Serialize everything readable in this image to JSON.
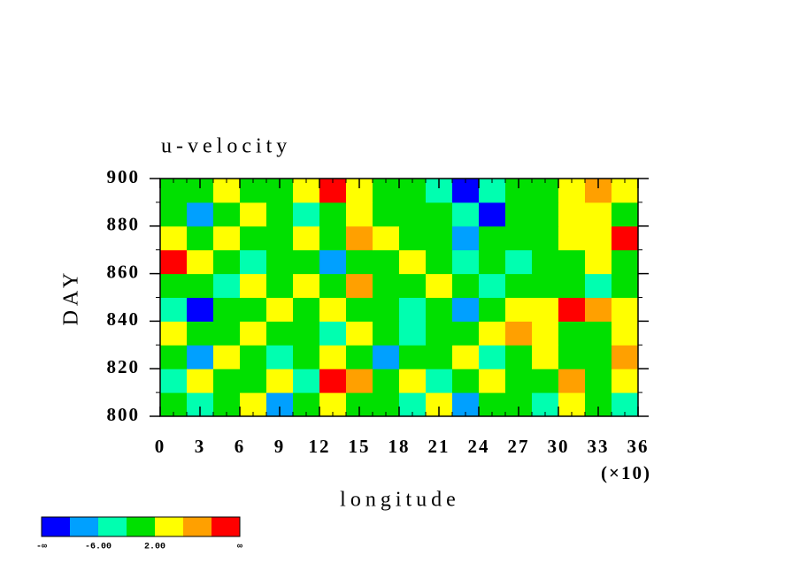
{
  "chart_data": {
    "type": "contour",
    "title": "u-velocity",
    "xlabel": "longitude",
    "ylabel": "DAY",
    "x_multiplier": "(×10)",
    "xlim": [
      0,
      36
    ],
    "xticks": [
      0,
      3,
      6,
      9,
      12,
      15,
      18,
      21,
      24,
      27,
      30,
      33,
      36
    ],
    "xminor": 1,
    "ylim": [
      800,
      900
    ],
    "yticks": [
      800,
      820,
      840,
      860,
      880,
      900
    ],
    "yminor": 10,
    "levels": [
      -10,
      -6,
      -2,
      2,
      6,
      10
    ],
    "colors": [
      "#0000ff",
      "#00a0ff",
      "#00ffb0",
      "#00e000",
      "#ffff00",
      "#ffa000",
      "#ff0000"
    ],
    "colorbar_labels": [
      "-∞",
      "-6.00",
      "2.00",
      "∞"
    ],
    "field": [
      [
        1,
        -3,
        0,
        3,
        -7,
        1,
        4,
        -1,
        0,
        -3,
        2,
        -8,
        0,
        1,
        -3,
        3,
        0,
        -4
      ],
      [
        -3,
        5,
        -1,
        0,
        2,
        -3,
        11,
        7,
        -1,
        2,
        -5,
        0,
        3,
        -2,
        0,
        7,
        1,
        2
      ],
      [
        0,
        -7,
        3,
        1,
        -4,
        0,
        3,
        -1,
        -7,
        0,
        1,
        3,
        -3,
        0,
        4,
        -2,
        0,
        6
      ],
      [
        3,
        0,
        -2,
        4,
        0,
        1,
        -3,
        2,
        0,
        -4,
        1,
        0,
        4,
        8,
        3,
        -1,
        0,
        3
      ],
      [
        -4,
        -11,
        -2,
        0,
        3,
        -1,
        5,
        0,
        1,
        -3,
        0,
        -7,
        0,
        2,
        4,
        11,
        7,
        3
      ],
      [
        1,
        0,
        -4,
        3,
        0,
        5,
        1,
        9,
        -2,
        -1,
        3,
        0,
        -3,
        -1,
        0,
        1,
        -4,
        -2
      ],
      [
        11,
        2,
        0,
        -3,
        -1,
        0,
        -7,
        1,
        0,
        4,
        1,
        -3,
        0,
        -6,
        -1,
        0,
        3,
        1
      ],
      [
        3,
        0,
        4,
        -1,
        1,
        3,
        0,
        7,
        2,
        -1,
        0,
        -8,
        -2,
        0,
        1,
        4,
        2,
        11
      ],
      [
        -2,
        -7,
        0,
        3,
        0,
        -3,
        1,
        4,
        0,
        -2,
        0,
        -3,
        -11,
        -1,
        0,
        3,
        2,
        1
      ],
      [
        1,
        0,
        3,
        0,
        -2,
        4,
        10,
        3,
        -1,
        0,
        -3,
        -11,
        -4,
        0,
        -1,
        2,
        8,
        3
      ]
    ]
  }
}
